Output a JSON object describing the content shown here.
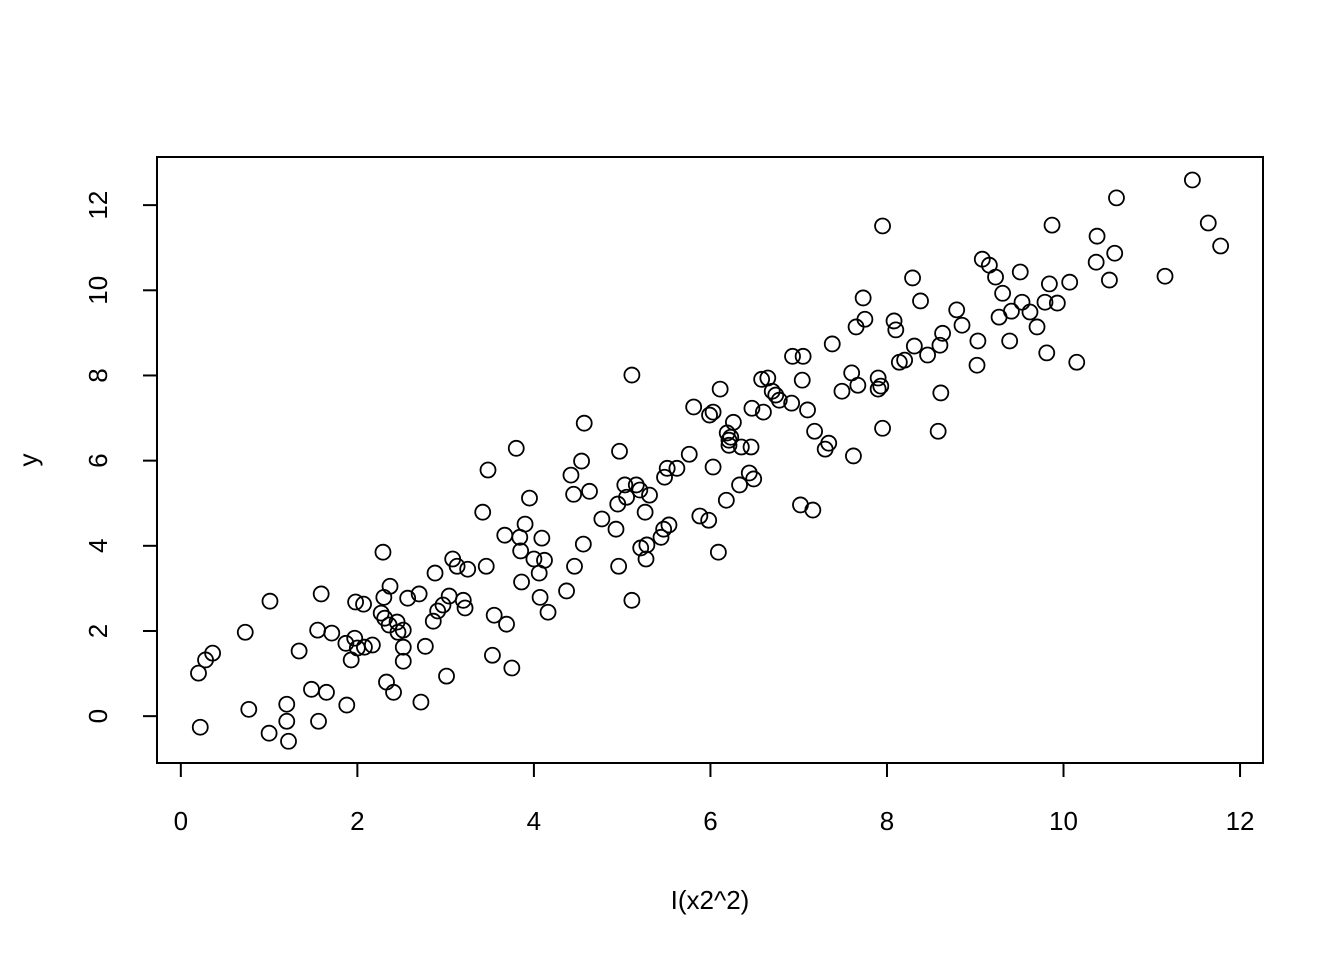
{
  "chart_data": {
    "type": "scatter",
    "x_label": "I(x2^2)",
    "y_label": "y",
    "color": "#000000",
    "xlim": [
      -0.27,
      12.26
    ],
    "ylim": [
      -1.1,
      13.13
    ],
    "xticks": [
      0,
      2,
      4,
      6,
      8,
      10,
      12
    ],
    "yticks": [
      0,
      2,
      4,
      6,
      8,
      10,
      12
    ],
    "x": [
      0.2,
      0.22,
      0.28,
      0.36,
      0.73,
      0.77,
      1.0,
      1.01,
      1.2,
      1.2,
      1.22,
      1.34,
      1.48,
      1.55,
      1.56,
      1.59,
      1.65,
      1.71,
      1.87,
      1.88,
      1.93,
      1.97,
      1.98,
      2.0,
      2.07,
      2.08,
      2.17,
      2.27,
      2.29,
      2.3,
      2.31,
      2.33,
      2.36,
      2.37,
      2.41,
      2.45,
      2.46,
      2.52,
      2.52,
      2.52,
      2.57,
      2.7,
      2.72,
      2.77,
      2.86,
      2.88,
      2.91,
      2.97,
      3.01,
      3.04,
      3.08,
      3.13,
      3.2,
      3.22,
      3.25,
      3.42,
      3.46,
      3.48,
      3.53,
      3.55,
      3.67,
      3.69,
      3.75,
      3.8,
      3.84,
      3.85,
      3.86,
      3.9,
      3.95,
      4.0,
      4.06,
      4.07,
      4.09,
      4.12,
      4.16,
      4.37,
      4.42,
      4.45,
      4.46,
      4.54,
      4.56,
      4.57,
      4.63,
      4.77,
      4.93,
      4.95,
      4.96,
      4.97,
      5.03,
      5.05,
      5.11,
      5.11,
      5.16,
      5.2,
      5.21,
      5.26,
      5.28,
      5.27,
      5.31,
      5.44,
      5.47,
      5.48,
      5.51,
      5.53,
      5.62,
      5.76,
      5.81,
      5.88,
      5.98,
      5.99,
      6.03,
      6.03,
      6.09,
      6.11,
      6.18,
      6.19,
      6.21,
      6.21,
      6.23,
      6.26,
      6.33,
      6.35,
      6.44,
      6.46,
      6.47,
      6.49,
      6.58,
      6.6,
      6.65,
      6.7,
      6.74,
      6.78,
      6.92,
      6.93,
      7.02,
      7.04,
      7.05,
      7.1,
      7.16,
      7.18,
      7.3,
      7.34,
      7.38,
      7.49,
      7.6,
      7.62,
      7.65,
      7.67,
      7.73,
      7.75,
      7.9,
      7.9,
      7.93,
      7.95,
      7.95,
      8.08,
      8.1,
      8.14,
      8.2,
      8.29,
      8.31,
      8.38,
      8.46,
      8.58,
      8.6,
      8.61,
      8.63,
      8.79,
      8.85,
      9.02,
      9.03,
      9.08,
      9.16,
      9.23,
      9.27,
      9.31,
      9.39,
      9.41,
      9.51,
      9.53,
      9.62,
      9.7,
      9.79,
      9.81,
      9.84,
      9.87,
      9.93,
      10.07,
      10.15,
      10.37,
      10.38,
      10.52,
      10.58,
      10.6,
      11.15,
      11.46,
      11.64,
      11.78
    ],
    "values": [
      1.01,
      -0.26,
      1.32,
      1.48,
      1.97,
      0.16,
      -0.4,
      2.7,
      0.28,
      -0.12,
      -0.59,
      1.53,
      0.63,
      2.02,
      -0.12,
      2.87,
      0.56,
      1.95,
      1.71,
      0.26,
      1.32,
      1.83,
      2.68,
      1.6,
      2.63,
      1.62,
      1.67,
      2.42,
      3.85,
      2.79,
      2.3,
      0.8,
      2.14,
      3.05,
      0.56,
      2.21,
      1.97,
      2.02,
      1.62,
      1.29,
      2.77,
      2.87,
      0.33,
      1.64,
      2.23,
      3.36,
      2.47,
      2.61,
      0.94,
      2.82,
      3.69,
      3.52,
      2.72,
      2.54,
      3.45,
      4.79,
      3.52,
      5.78,
      1.43,
      2.37,
      4.25,
      2.16,
      1.13,
      6.29,
      4.2,
      3.88,
      3.15,
      4.51,
      5.12,
      3.69,
      3.36,
      2.79,
      4.18,
      3.66,
      2.44,
      2.94,
      5.66,
      5.21,
      3.52,
      5.99,
      4.04,
      6.88,
      5.28,
      4.63,
      4.39,
      4.98,
      3.52,
      6.22,
      5.43,
      5.14,
      2.72,
      8.01,
      5.43,
      5.31,
      3.95,
      4.79,
      4.02,
      3.69,
      5.19,
      4.2,
      4.39,
      5.61,
      5.82,
      4.49,
      5.82,
      6.15,
      7.26,
      4.7,
      4.6,
      7.07,
      7.14,
      5.85,
      3.85,
      7.68,
      5.07,
      6.65,
      6.36,
      6.48,
      6.55,
      6.9,
      5.43,
      6.32,
      5.71,
      6.32,
      7.23,
      5.57,
      7.91,
      7.14,
      7.94,
      7.63,
      7.54,
      7.42,
      7.35,
      8.45,
      4.96,
      7.89,
      8.45,
      7.19,
      4.84,
      6.69,
      6.27,
      6.41,
      8.74,
      7.63,
      8.06,
      6.11,
      9.14,
      7.77,
      9.82,
      9.32,
      7.94,
      7.68,
      7.75,
      11.51,
      6.76,
      9.28,
      9.07,
      8.31,
      8.36,
      10.29,
      8.69,
      9.75,
      8.48,
      6.69,
      8.71,
      7.59,
      8.99,
      9.54,
      9.18,
      8.24,
      8.81,
      10.73,
      10.59,
      10.31,
      9.37,
      9.93,
      8.81,
      9.51,
      10.43,
      9.72,
      9.49,
      9.14,
      9.72,
      8.53,
      10.15,
      11.53,
      9.7,
      10.19,
      8.31,
      10.66,
      11.27,
      10.24,
      10.87,
      12.17,
      10.33,
      12.59,
      11.58,
      11.04
    ]
  }
}
